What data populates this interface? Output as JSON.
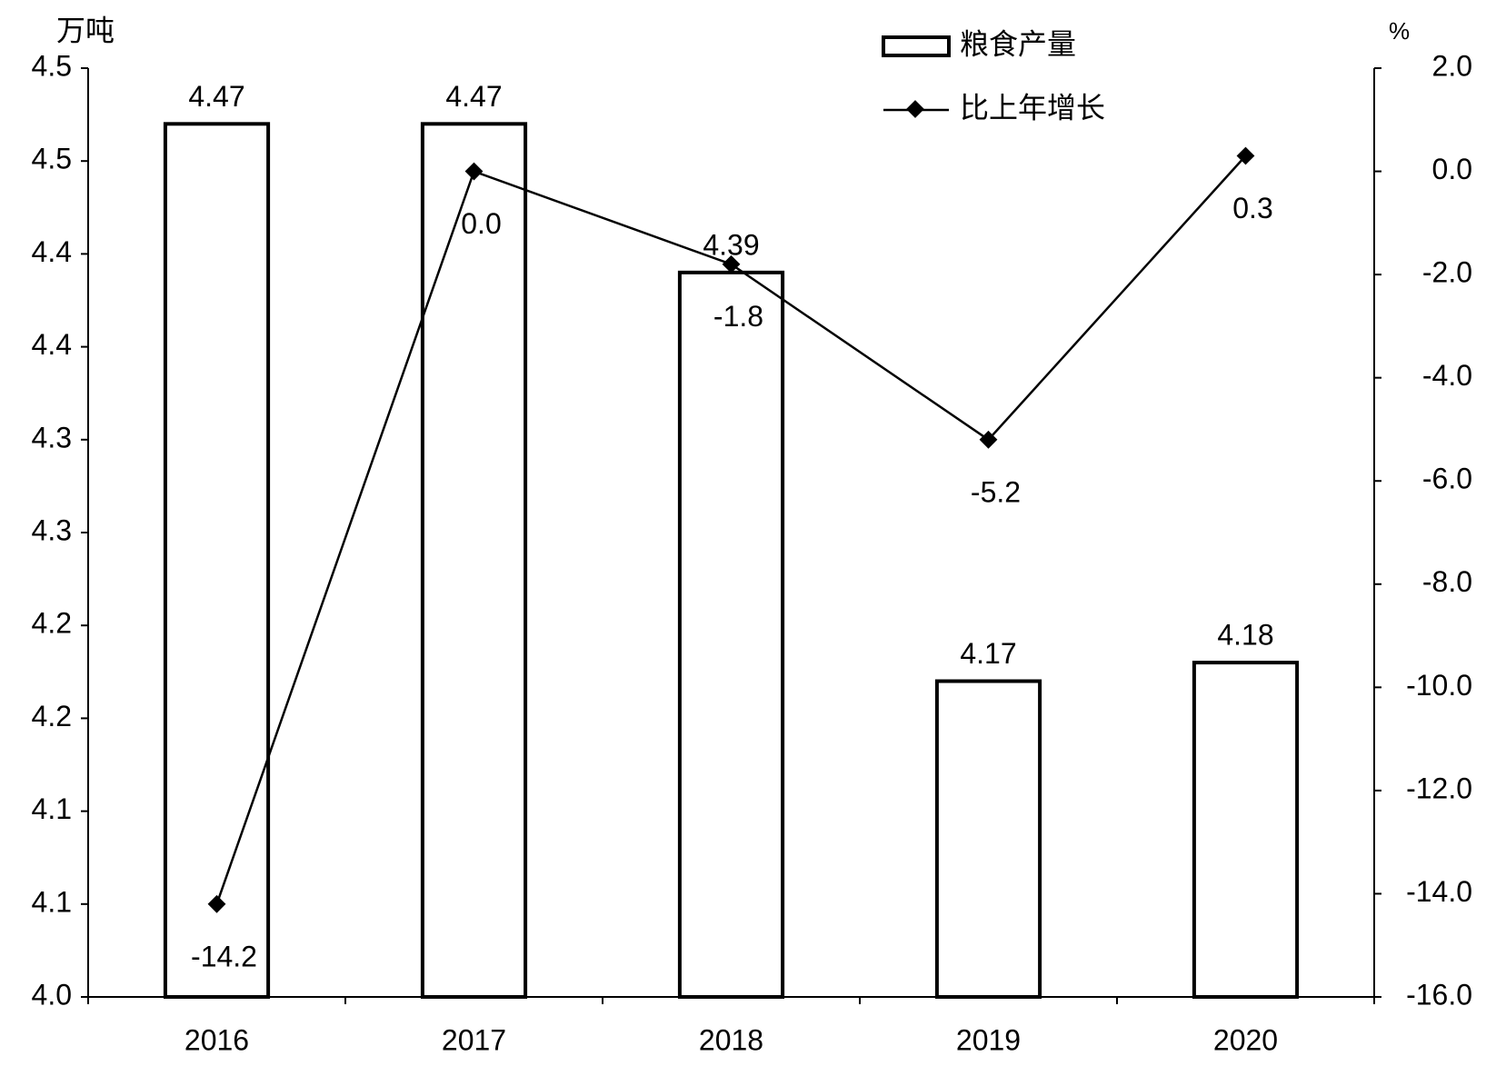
{
  "chart_data": {
    "type": "bar",
    "categories": [
      "2016",
      "2017",
      "2018",
      "2019",
      "2020"
    ],
    "y_label": "万吨",
    "y2_label": "%",
    "ylim": [
      4,
      4.5
    ],
    "yticks": [
      {
        "value": 4,
        "label": "4.0"
      },
      {
        "value": 4.05,
        "label": "4.1"
      },
      4.1,
      {
        "value": 4.15,
        "label": "4.2"
      },
      4.2,
      {
        "value": 4.25,
        "label": "4.3"
      },
      4.3,
      {
        "value": 4.35,
        "label": "4.4"
      },
      4.4,
      {
        "value": 4.45,
        "label": "4.5"
      },
      4.5
    ],
    "y2lim": [
      -16,
      2
    ],
    "y2ticks": [
      {
        "value": -16,
        "label": "-16.0"
      },
      {
        "value": -14,
        "label": "-14.0"
      },
      {
        "value": -12,
        "label": "-12.0"
      },
      {
        "value": -10,
        "label": "-10.0"
      },
      {
        "value": -8,
        "label": "-8.0"
      },
      {
        "value": -6,
        "label": "-6.0"
      },
      {
        "value": -4,
        "label": "-4.0"
      },
      {
        "value": -2,
        "label": "-2.0"
      },
      {
        "value": 0,
        "label": "0.0"
      },
      {
        "value": 2,
        "label": "2.0"
      }
    ],
    "series": [
      {
        "name": "粮食产量",
        "type": "bar",
        "color": "#ffffff",
        "values": [
          4.47,
          4.47,
          4.39,
          4.17,
          4.18
        ]
      },
      {
        "name": "比上年增长",
        "type": "line",
        "axis": "y2",
        "color": "#000000",
        "values": [
          -14.2,
          0,
          -1.8,
          -5.2,
          0.3
        ],
        "value_labels": [
          "-14.2",
          "0.0",
          "-1.8",
          "-5.2",
          "0.3"
        ]
      }
    ]
  }
}
